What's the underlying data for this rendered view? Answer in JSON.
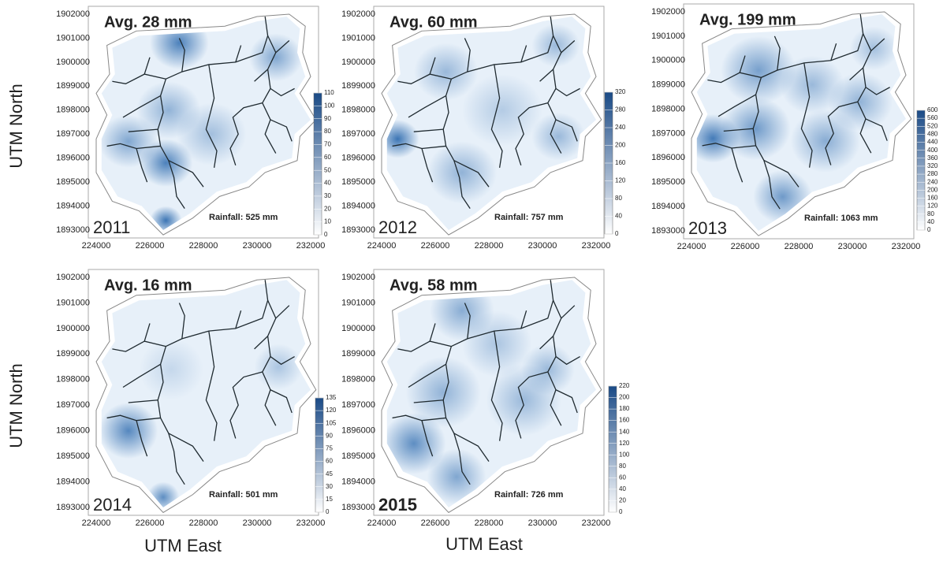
{
  "axis_labels": {
    "y": "UTM North",
    "x": "UTM East"
  },
  "x_ticks": [
    "224000",
    "226000",
    "228000",
    "230000",
    "232000"
  ],
  "y_ticks": [
    "1902000",
    "1901000",
    "1900000",
    "1899000",
    "1898000",
    "1897000",
    "1896000",
    "1895000",
    "1894000",
    "1893000"
  ],
  "panels": [
    {
      "average": "Avg. 28 mm",
      "year": "2011",
      "rainfall": "Rainfall: 525 mm",
      "colorbar_ticks": [
        0,
        10,
        20,
        30,
        40,
        50,
        60,
        70,
        80,
        90,
        100,
        110
      ]
    },
    {
      "average": "Avg. 60 mm",
      "year": "2012",
      "rainfall": "Rainfall: 757 mm",
      "colorbar_ticks": [
        0,
        40,
        80,
        120,
        160,
        200,
        240,
        280,
        320
      ]
    },
    {
      "average": "Avg. 199 mm",
      "year": "2013",
      "rainfall": "Rainfall: 1063 mm",
      "colorbar_ticks": [
        0,
        40,
        80,
        120,
        160,
        200,
        240,
        280,
        320,
        360,
        400,
        440,
        480,
        520,
        560,
        600
      ]
    },
    {
      "average": "Avg. 16 mm",
      "year": "2014",
      "rainfall": "Rainfall: 501 mm",
      "colorbar_ticks": [
        0,
        15,
        30,
        45,
        60,
        75,
        90,
        105,
        120,
        135
      ]
    },
    {
      "average": "Avg. 58 mm",
      "year": "2015",
      "rainfall": "Rainfall: 726 mm",
      "colorbar_ticks": [
        0,
        20,
        40,
        60,
        80,
        100,
        120,
        140,
        160,
        180,
        200,
        220
      ]
    }
  ]
}
